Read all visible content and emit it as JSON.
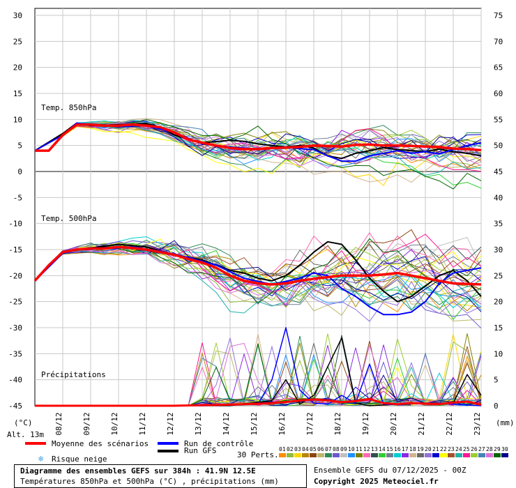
{
  "chart_data": {
    "type": "line",
    "title": "Diagramme des ensembles GEFS sur 384h : 41.9N 12.5E",
    "subtitle": "Températures 850hPa et 500hPa (°C) , précipitations (mm)",
    "x_tick_labels": [
      "08/12",
      "09/12",
      "10/12",
      "11/12",
      "12/12",
      "13/12",
      "14/12",
      "15/12",
      "16/12",
      "17/12",
      "18/12",
      "19/12",
      "20/12",
      "21/12",
      "22/12",
      "23/12"
    ],
    "x_range_hours": [
      0,
      384
    ],
    "left_axis": {
      "label": "(°C)",
      "ticks": [
        30,
        25,
        20,
        15,
        10,
        5,
        0,
        -5,
        -10,
        -15,
        -20,
        -25,
        -30,
        -35,
        -40,
        -45
      ],
      "range": [
        -45,
        30
      ]
    },
    "right_axis": {
      "label": "(mm)",
      "ticks": [
        75,
        70,
        65,
        60,
        55,
        50,
        45,
        40,
        35,
        30,
        25,
        20,
        15,
        10,
        5,
        0
      ],
      "range": [
        0,
        75
      ]
    },
    "grid": true,
    "panel_labels": {
      "t850": "Temp. 850hPa",
      "t500": "Temp. 500hPa",
      "precip": "Précipitations"
    },
    "altitude_label": "Alt. 13m",
    "series_mean": {
      "name": "Moyenne des scénarios",
      "color": "#ff0000",
      "t850": [
        [
          0,
          4
        ],
        [
          12,
          4
        ],
        [
          24,
          7
        ],
        [
          36,
          9
        ],
        [
          48,
          9
        ],
        [
          60,
          8.8
        ],
        [
          72,
          8.8
        ],
        [
          84,
          9
        ],
        [
          96,
          8.8
        ],
        [
          108,
          8.5
        ],
        [
          120,
          7.5
        ],
        [
          132,
          6.2
        ],
        [
          144,
          5.5
        ],
        [
          156,
          5
        ],
        [
          168,
          4.5
        ],
        [
          180,
          4.3
        ],
        [
          192,
          4.3
        ],
        [
          204,
          4.5
        ],
        [
          216,
          4.6
        ],
        [
          228,
          4.7
        ],
        [
          240,
          5
        ],
        [
          252,
          4.9
        ],
        [
          264,
          4.8
        ],
        [
          276,
          5.1
        ],
        [
          288,
          5.2
        ],
        [
          300,
          5
        ],
        [
          312,
          5
        ],
        [
          324,
          4.9
        ],
        [
          336,
          4.8
        ],
        [
          348,
          4.7
        ],
        [
          360,
          4.4
        ],
        [
          372,
          4.3
        ],
        [
          384,
          4.1
        ]
      ],
      "t500": [
        [
          0,
          -21
        ],
        [
          12,
          -18
        ],
        [
          24,
          -15.5
        ],
        [
          36,
          -15
        ],
        [
          48,
          -14.8
        ],
        [
          60,
          -14.8
        ],
        [
          72,
          -14.5
        ],
        [
          84,
          -14.7
        ],
        [
          96,
          -15
        ],
        [
          108,
          -15.5
        ],
        [
          120,
          -16
        ],
        [
          132,
          -16.8
        ],
        [
          144,
          -17.5
        ],
        [
          156,
          -18.5
        ],
        [
          168,
          -20
        ],
        [
          180,
          -21
        ],
        [
          192,
          -21.5
        ],
        [
          204,
          -21.7
        ],
        [
          216,
          -21.5
        ],
        [
          228,
          -21
        ],
        [
          240,
          -20.6
        ],
        [
          252,
          -20.3
        ],
        [
          264,
          -20
        ],
        [
          276,
          -20
        ],
        [
          288,
          -20
        ],
        [
          300,
          -19.8
        ],
        [
          312,
          -19.5
        ],
        [
          324,
          -20
        ],
        [
          336,
          -20.5
        ],
        [
          348,
          -21
        ],
        [
          360,
          -21.5
        ],
        [
          372,
          -21.6
        ],
        [
          384,
          -21.7
        ]
      ],
      "precip": [
        [
          0,
          0
        ],
        [
          120,
          0
        ],
        [
          168,
          0.2
        ],
        [
          204,
          0.5
        ],
        [
          216,
          0.7
        ],
        [
          228,
          1
        ],
        [
          240,
          1.2
        ],
        [
          252,
          1
        ],
        [
          264,
          0.7
        ],
        [
          276,
          0.9
        ],
        [
          288,
          1.3
        ],
        [
          300,
          0.5
        ],
        [
          312,
          0.3
        ],
        [
          324,
          0.5
        ],
        [
          336,
          0.4
        ],
        [
          348,
          0.3
        ],
        [
          360,
          0.6
        ],
        [
          372,
          0.8
        ],
        [
          384,
          0.2
        ]
      ]
    },
    "series_control": {
      "name": "Run de contrôle",
      "color": "#0000ff",
      "t850": [
        [
          0,
          4
        ],
        [
          24,
          7
        ],
        [
          36,
          9.3
        ],
        [
          48,
          9
        ],
        [
          72,
          8.6
        ],
        [
          96,
          8.8
        ],
        [
          120,
          7.5
        ],
        [
          144,
          5.3
        ],
        [
          168,
          4.7
        ],
        [
          192,
          4.3
        ],
        [
          216,
          4.6
        ],
        [
          240,
          4.2
        ],
        [
          252,
          3
        ],
        [
          264,
          2
        ],
        [
          276,
          2
        ],
        [
          288,
          3
        ],
        [
          300,
          3.5
        ],
        [
          312,
          4
        ],
        [
          324,
          3.5
        ],
        [
          336,
          3.8
        ],
        [
          348,
          3.4
        ],
        [
          360,
          4.2
        ],
        [
          372,
          5
        ],
        [
          384,
          5.5
        ]
      ],
      "t500": [
        [
          0,
          -21
        ],
        [
          24,
          -15.7
        ],
        [
          36,
          -15
        ],
        [
          60,
          -14.8
        ],
        [
          84,
          -14.5
        ],
        [
          108,
          -15.3
        ],
        [
          132,
          -16.5
        ],
        [
          156,
          -18
        ],
        [
          180,
          -20.5
        ],
        [
          204,
          -21.7
        ],
        [
          228,
          -20.5
        ],
        [
          240,
          -19.5
        ],
        [
          252,
          -20
        ],
        [
          264,
          -22.5
        ],
        [
          276,
          -24
        ],
        [
          288,
          -26
        ],
        [
          300,
          -27.5
        ],
        [
          312,
          -27.5
        ],
        [
          324,
          -27
        ],
        [
          336,
          -25
        ],
        [
          348,
          -21.5
        ],
        [
          360,
          -19.5
        ],
        [
          372,
          -19
        ],
        [
          384,
          -18.5
        ]
      ],
      "precip": [
        [
          0,
          0
        ],
        [
          144,
          0
        ],
        [
          192,
          0.3
        ],
        [
          204,
          5
        ],
        [
          216,
          15
        ],
        [
          228,
          3
        ],
        [
          240,
          0.5
        ],
        [
          252,
          0.3
        ],
        [
          264,
          2
        ],
        [
          276,
          0.5
        ],
        [
          288,
          8
        ],
        [
          300,
          0.3
        ],
        [
          312,
          0.2
        ],
        [
          336,
          0.5
        ],
        [
          360,
          0.3
        ],
        [
          384,
          0
        ]
      ]
    },
    "series_gfs": {
      "name": "Run GFS",
      "color": "#000000",
      "t850": [
        [
          0,
          4
        ],
        [
          24,
          7.3
        ],
        [
          36,
          9.3
        ],
        [
          48,
          8.8
        ],
        [
          72,
          9
        ],
        [
          96,
          9.2
        ],
        [
          108,
          8.5
        ],
        [
          120,
          7
        ],
        [
          144,
          5.5
        ],
        [
          168,
          6
        ],
        [
          180,
          5.8
        ],
        [
          192,
          5.3
        ],
        [
          204,
          5
        ],
        [
          216,
          4.7
        ],
        [
          228,
          5
        ],
        [
          240,
          4.5
        ],
        [
          252,
          3
        ],
        [
          264,
          2.5
        ],
        [
          276,
          3.5
        ],
        [
          288,
          4
        ],
        [
          300,
          4.6
        ],
        [
          312,
          4.2
        ],
        [
          324,
          4
        ],
        [
          336,
          3.8
        ],
        [
          348,
          4.3
        ],
        [
          360,
          3.8
        ],
        [
          372,
          3.5
        ],
        [
          384,
          3
        ]
      ],
      "t500": [
        [
          0,
          -21
        ],
        [
          24,
          -15.5
        ],
        [
          48,
          -14.7
        ],
        [
          72,
          -14
        ],
        [
          96,
          -14.5
        ],
        [
          120,
          -16
        ],
        [
          144,
          -17
        ],
        [
          168,
          -19
        ],
        [
          180,
          -19.5
        ],
        [
          192,
          -20.5
        ],
        [
          204,
          -21
        ],
        [
          216,
          -20
        ],
        [
          228,
          -18
        ],
        [
          240,
          -15.5
        ],
        [
          252,
          -13.5
        ],
        [
          264,
          -14
        ],
        [
          276,
          -17
        ],
        [
          288,
          -20.5
        ],
        [
          300,
          -23
        ],
        [
          312,
          -25
        ],
        [
          324,
          -24
        ],
        [
          336,
          -22
        ],
        [
          348,
          -20
        ],
        [
          360,
          -19
        ],
        [
          372,
          -21
        ],
        [
          384,
          -24
        ]
      ],
      "precip": [
        [
          0,
          0
        ],
        [
          168,
          0
        ],
        [
          204,
          1
        ],
        [
          216,
          5
        ],
        [
          228,
          0.3
        ],
        [
          240,
          2
        ],
        [
          264,
          13
        ],
        [
          276,
          0.5
        ],
        [
          288,
          0
        ],
        [
          312,
          0.3
        ],
        [
          336,
          0.5
        ],
        [
          360,
          0.5
        ],
        [
          372,
          6
        ],
        [
          384,
          2
        ]
      ]
    },
    "perturbations_count": 30,
    "perturbation_labels": [
      "01",
      "02",
      "03",
      "04",
      "05",
      "06",
      "07",
      "08",
      "09",
      "10",
      "11",
      "12",
      "13",
      "14",
      "15",
      "16",
      "17",
      "18",
      "19",
      "20",
      "21",
      "22",
      "23",
      "24",
      "25",
      "26",
      "27",
      "28",
      "29",
      "30"
    ],
    "perturbation_colors": [
      "#ff8c00",
      "#8fbc3f",
      "#ffd700",
      "#b8860b",
      "#8b4513",
      "#bdb76b",
      "#2e8b57",
      "#6a5acd",
      "#c0c0c0",
      "#1e90ff",
      "#808000",
      "#ff69b4",
      "#2f4f4f",
      "#32cd32",
      "#708090",
      "#00ced1",
      "#8a2be2",
      "#d2b48c",
      "#696969",
      "#9370db",
      "#0000cd",
      "#ffff00",
      "#a0522d",
      "#20b2aa",
      "#ff1493",
      "#9acd32",
      "#4682b4",
      "#da70d6",
      "#006400",
      "#00008b"
    ]
  },
  "legend": {
    "mean": "Moyenne des scénarios",
    "control": "Run de contrôle",
    "gfs": "Run GFS",
    "perts": "30 Perts.",
    "snow": "Risque neige"
  },
  "footer": {
    "title": "Diagramme des ensembles GEFS sur 384h : 41.9N 12.5E",
    "subtitle": "Températures 850hPa et 500hPa (°C) , précipitations (mm)",
    "run": "Ensemble GEFS du 07/12/2025 - 00Z",
    "copyright": "Copyright 2025 Meteociel.fr"
  }
}
